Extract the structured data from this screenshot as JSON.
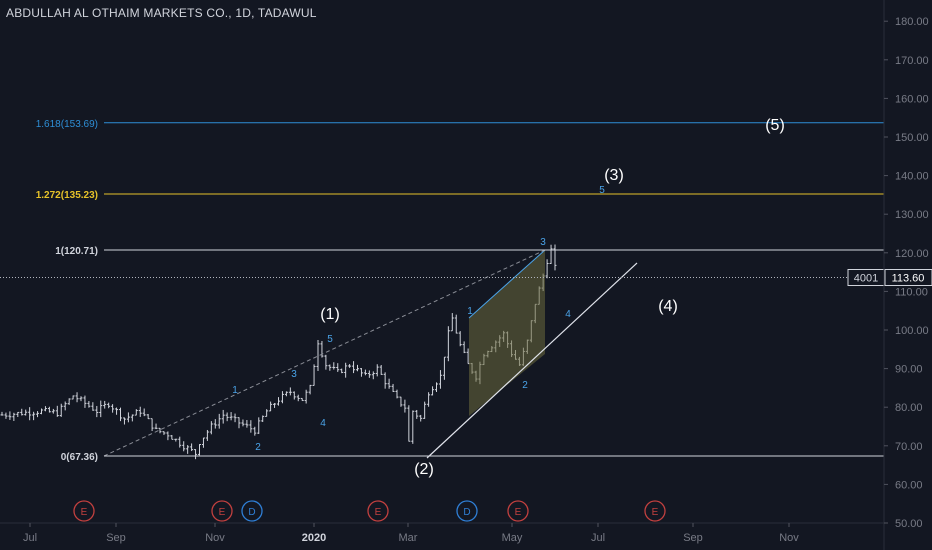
{
  "header": {
    "title": "ABDULLAH AL OTHAIM MARKETS CO., 1D, TADAWUL"
  },
  "colors": {
    "background": "#131722",
    "candle": "#d1d4dc",
    "fib_0": "#d1d4dc",
    "fib_1": "#d1d4dc",
    "fib_1272": "#e6c229",
    "fib_1618": "#2e8ed6",
    "wave_minor": "#4aa3e8",
    "wave_major": "#ffffff",
    "event_e": "#c2403f",
    "event_d": "#2f7fd6",
    "channel_fill": "#6b6a3d"
  },
  "chart_data": {
    "type": "candlestick",
    "symbol": "ABDULLAH AL OTHAIM MARKETS CO.",
    "interval": "1D",
    "exchange": "TADAWUL",
    "ylim": [
      50,
      185
    ],
    "y_ticks": [
      "50.00",
      "60.00",
      "70.00",
      "80.00",
      "90.00",
      "100.00",
      "110.00",
      "120.00",
      "130.00",
      "140.00",
      "150.00",
      "160.00",
      "170.00",
      "180.00"
    ],
    "x_ticks": [
      "Jul",
      "Sep",
      "Nov",
      "2020",
      "Mar",
      "May",
      "Jul",
      "Sep",
      "Nov"
    ],
    "last_price": "113.60",
    "last_price_tag": "4001",
    "fib_levels": [
      {
        "ratio": "0",
        "label": "0(67.36)",
        "value": 67.36
      },
      {
        "ratio": "1",
        "label": "1(120.71)",
        "value": 120.71
      },
      {
        "ratio": "1.272",
        "label": "1.272(135.23)",
        "value": 135.23
      },
      {
        "ratio": "1.618",
        "label": "1.618(153.69)",
        "value": 153.69
      }
    ],
    "wave_labels_major": [
      "(1)",
      "(2)",
      "(3)",
      "(4)",
      "(5)"
    ],
    "wave_labels_minor": [
      "1",
      "2",
      "3",
      "4",
      "5",
      "1",
      "2",
      "3",
      "4",
      "5"
    ],
    "events": [
      "E",
      "E",
      "D",
      "E",
      "D",
      "E",
      "E"
    ],
    "price_path": [
      [
        0,
        78
      ],
      [
        10,
        79
      ],
      [
        14,
        78.5
      ],
      [
        18,
        83
      ],
      [
        24,
        79
      ],
      [
        27,
        81
      ],
      [
        31,
        77
      ],
      [
        35,
        79
      ],
      [
        39,
        74
      ],
      [
        42,
        73
      ],
      [
        46,
        70
      ],
      [
        49,
        68
      ],
      [
        50,
        71
      ],
      [
        53,
        75
      ],
      [
        56,
        78
      ],
      [
        60,
        76
      ],
      [
        64,
        74
      ],
      [
        67,
        79
      ],
      [
        70,
        82
      ],
      [
        73,
        84
      ],
      [
        76,
        82
      ],
      [
        78,
        85
      ],
      [
        80,
        97
      ],
      [
        82,
        91
      ],
      [
        85,
        89
      ],
      [
        88,
        91
      ],
      [
        92,
        88
      ],
      [
        95,
        90
      ],
      [
        98,
        85
      ],
      [
        100,
        82
      ],
      [
        102,
        80
      ],
      [
        103,
        71
      ],
      [
        104,
        79
      ],
      [
        106,
        77
      ],
      [
        108,
        84
      ],
      [
        111,
        88
      ],
      [
        113,
        99
      ],
      [
        114,
        103
      ],
      [
        116,
        96
      ],
      [
        118,
        91
      ],
      [
        120,
        88
      ],
      [
        122,
        94
      ],
      [
        124,
        96
      ],
      [
        127,
        99
      ],
      [
        129,
        94
      ],
      [
        131,
        91
      ],
      [
        133,
        97
      ],
      [
        135,
        107
      ],
      [
        137,
        114
      ],
      [
        138,
        118
      ],
      [
        139,
        120.7
      ],
      [
        140,
        116
      ],
      [
        141,
        113.6
      ]
    ]
  }
}
